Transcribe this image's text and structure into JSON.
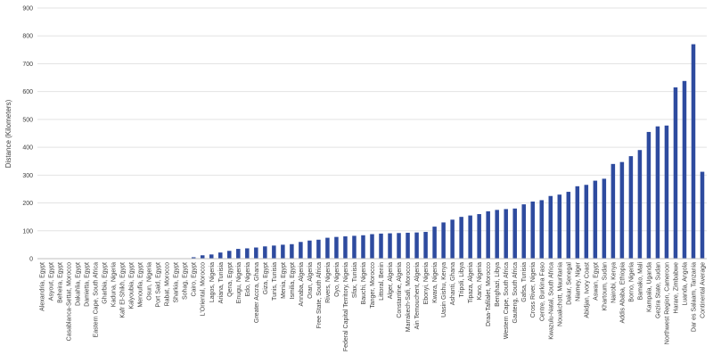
{
  "chart_data": {
    "type": "bar",
    "title": "",
    "xlabel": "",
    "ylabel": "Distance (Kilometers)",
    "ylim": [
      0,
      900
    ],
    "yticks": [
      0,
      100,
      200,
      300,
      400,
      500,
      600,
      700,
      800,
      900
    ],
    "grid": "horizontal",
    "legend": "none",
    "bar_color": "#2e4b9f",
    "categories": [
      "Alexandria, Egypt",
      "Asyout, Egypt",
      "Beheira, Egypt",
      "Casablanca-Settat, Morocco",
      "Dakahlia, Egypt",
      "Damietta, Egypt",
      "Eastern Cape, South Africa",
      "Gharbia, Egypt",
      "Kaduna, Nigeria",
      "Kafr El-Shikh, Egypt",
      "Kalyoubia, Egypt",
      "Menoufia, Egypt",
      "Osun, Nigeria",
      "Port Said, Egypt",
      "Rabat, Morocco",
      "Sharkia, Egypt",
      "Sohag, Egypt",
      "Cairo, Egypt",
      "L'Oriental, Morocco",
      "Lagos, Nigeria",
      "Ariana, Tunisia",
      "Qena, Egypt",
      "Enugu, Nigeria",
      "Edo, Nigeria",
      "Greater Accra, Ghana",
      "Giza, Egypt",
      "Tunis, Tunisia",
      "Menia, Egypt",
      "Ismilia, Egypt",
      "Annaba, Algeria",
      "Oran, Algeria",
      "Free State, South Africa",
      "Rivers, Nigeria",
      "Oyo, Nigeria",
      "Federal Capital Territory, Nigeria",
      "Sfax, Tunisia",
      "Bauchi, Nigeria",
      "Tanger, Morocco",
      "Littoral, Benin",
      "Alger, Algeria",
      "Constantine, Algeria",
      "Marrakech-Safi, Morocco",
      "Ain Temouchent, Algeria",
      "Ebonyi, Nigeria",
      "Kwara, Nigeria",
      "Uasin Gishu, Kenya",
      "Ashanti, Ghana",
      "Tripoli, Libya",
      "Tipaza, Algeria",
      "Kano, Nigeria",
      "Draa-Tafilalet, Morocco",
      "Benghazi, Libya",
      "Western Cape, South Africa",
      "Gauteng, South Africa",
      "Gafsa, Tunisia",
      "Cross River, Nigeria",
      "Centre, Burkina Faso",
      "Kwazulu-Natal, South Africa",
      "Nouakchott, Mauritania",
      "Dakar, Senegal",
      "Niamey, Niger",
      "Abidjan, Ivory Coast",
      "Aswan, Egypt",
      "Khartoum, Sudan",
      "Nairobi, Kenya",
      "Addis Ababa, Ethiopia",
      "Borno, Nigeria",
      "Bamako, Mali",
      "Kampala, Uganda",
      "Gezira State, Sudan",
      "Northwest Region, Cameroon",
      "Harare, Zimbabwe",
      "Luanda, Angola",
      "Dar es Salaam, Tanzania",
      "Continental Average"
    ],
    "values": [
      0,
      0,
      0,
      0,
      0,
      0,
      0,
      0,
      0,
      0,
      0,
      0,
      0,
      0,
      0,
      0,
      0,
      5,
      12,
      15,
      22,
      28,
      35,
      37,
      40,
      44,
      47,
      50,
      52,
      60,
      65,
      68,
      75,
      78,
      80,
      82,
      84,
      88,
      90,
      91,
      92,
      93,
      94,
      96,
      115,
      130,
      140,
      150,
      155,
      160,
      170,
      175,
      178,
      180,
      195,
      205,
      210,
      225,
      230,
      240,
      260,
      265,
      280,
      287,
      340,
      347,
      368,
      390,
      455,
      475,
      478,
      615,
      638,
      770,
      312
    ]
  }
}
